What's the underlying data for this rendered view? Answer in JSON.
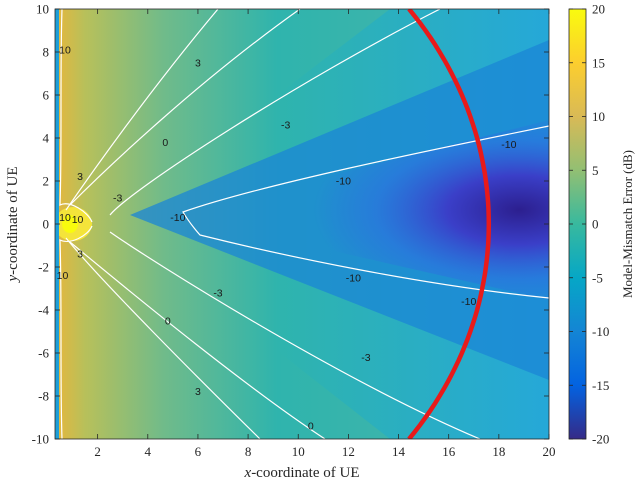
{
  "chart_data": {
    "type": "heatmap",
    "title": "",
    "xlabel_var": "x",
    "xlabel_rest": "-coordinate of UE",
    "ylabel_var": "y",
    "ylabel_rest": "-coordinate of UE",
    "xlim": [
      0.3,
      20
    ],
    "ylim": [
      -10,
      10
    ],
    "xticks": [
      2,
      4,
      6,
      8,
      10,
      12,
      14,
      16,
      18,
      20
    ],
    "yticks": [
      10,
      8,
      6,
      4,
      2,
      0,
      -2,
      -4,
      -6,
      -8,
      -10
    ],
    "colorbar": {
      "label": "Model-Mismatch Error (dB)",
      "limits": [
        -20,
        20
      ],
      "ticks": [
        20,
        15,
        10,
        5,
        0,
        -5,
        -10,
        -15,
        -20
      ],
      "colormap": "parula"
    },
    "contour_levels": [
      10,
      3,
      0,
      -3,
      -10
    ],
    "contour_labels": [
      {
        "text": "10",
        "x": 0.7,
        "y": 8.1
      },
      {
        "text": "3",
        "x": 6.0,
        "y": 7.5
      },
      {
        "text": "0",
        "x": 4.7,
        "y": 3.8
      },
      {
        "text": "-3",
        "x": 9.5,
        "y": 4.6
      },
      {
        "text": "-10",
        "x": 18.4,
        "y": 3.7
      },
      {
        "text": "-10",
        "x": 11.8,
        "y": 2.0
      },
      {
        "text": "3",
        "x": 1.3,
        "y": 2.2
      },
      {
        "text": "-3",
        "x": 2.8,
        "y": 1.2
      },
      {
        "text": "-10",
        "x": 5.2,
        "y": 0.3
      },
      {
        "text": "10",
        "x": 0.7,
        "y": 0.3
      },
      {
        "text": "10",
        "x": 1.2,
        "y": 0.2
      },
      {
        "text": "3",
        "x": 1.3,
        "y": -1.4
      },
      {
        "text": "10",
        "x": 0.6,
        "y": -2.4
      },
      {
        "text": "-10",
        "x": 12.2,
        "y": -2.5
      },
      {
        "text": "-10",
        "x": 16.8,
        "y": -3.6
      },
      {
        "text": "-3",
        "x": 6.8,
        "y": -3.2
      },
      {
        "text": "0",
        "x": 4.8,
        "y": -4.5
      },
      {
        "text": "3",
        "x": 6.0,
        "y": -7.8
      },
      {
        "text": "-3",
        "x": 12.7,
        "y": -6.2
      },
      {
        "text": "0",
        "x": 10.5,
        "y": -9.4
      }
    ],
    "red_arc": {
      "center": [
        0.3,
        0
      ],
      "radius": 17.3,
      "color": "#e81a1a"
    }
  }
}
